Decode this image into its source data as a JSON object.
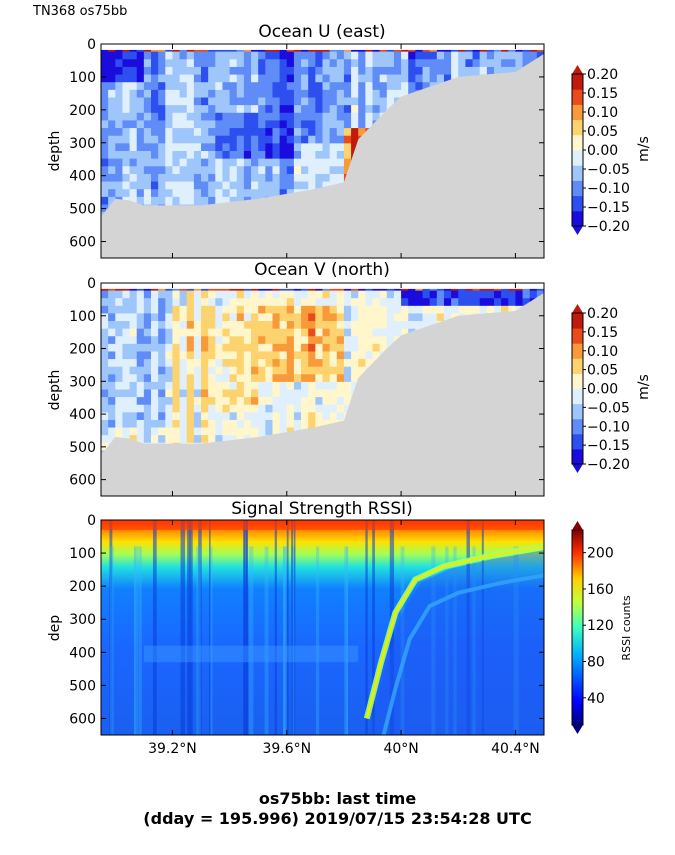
{
  "figure": {
    "suptitle": "TN368 os75bb",
    "footer_line1": "os75bb: last time",
    "footer_line2": "(dday = 195.996) 2019/07/15 23:54:28 UTC"
  },
  "colors": {
    "land_mask": "#d4d4d4",
    "background": "#ffffff"
  },
  "chart_data": [
    {
      "type": "heatmap",
      "title": "Ocean U (east)",
      "ylabel": "depth",
      "xlabel": "",
      "xlim": [
        38.95,
        40.5
      ],
      "ylim": [
        650,
        0
      ],
      "y_ticks": [
        0,
        100,
        200,
        300,
        400,
        500,
        600
      ],
      "x_ticks": [
        39.2,
        39.6,
        40.0,
        40.4
      ],
      "x_tick_labels": [],
      "colorbar": {
        "label": "m/s",
        "ticks": [
          "0.20",
          "0.15",
          "0.10",
          "0.05",
          "0.00",
          "−0.05",
          "−0.10",
          "−0.15",
          "−0.20"
        ],
        "range": [
          -0.2,
          0.2
        ],
        "levels": [
          "#1a0cdc",
          "#2d4ff0",
          "#5f8cf7",
          "#9ec6fb",
          "#dff0fc",
          "#fff6cc",
          "#fcd36f",
          "#f89a3a",
          "#ea4a1c",
          "#c01a0c"
        ]
      },
      "profile_depth_limit": [
        {
          "lat": 38.95,
          "depth": 525
        },
        {
          "lat": 39.0,
          "depth": 470
        },
        {
          "lat": 39.05,
          "depth": 475
        },
        {
          "lat": 39.1,
          "depth": 490
        },
        {
          "lat": 39.3,
          "depth": 490
        },
        {
          "lat": 39.5,
          "depth": 470
        },
        {
          "lat": 39.7,
          "depth": 440
        },
        {
          "lat": 39.8,
          "depth": 420
        },
        {
          "lat": 39.85,
          "depth": 290
        },
        {
          "lat": 39.95,
          "depth": 200
        },
        {
          "lat": 40.0,
          "depth": 160
        },
        {
          "lat": 40.2,
          "depth": 100
        },
        {
          "lat": 40.4,
          "depth": 85
        },
        {
          "lat": 40.5,
          "depth": 30
        }
      ],
      "velocity_regimes": [
        {
          "lat_from": 38.95,
          "lat_to": 39.1,
          "depth_from": 30,
          "depth_to": 110,
          "value": -0.17
        },
        {
          "lat_from": 39.1,
          "lat_to": 39.5,
          "depth_from": 30,
          "depth_to": 200,
          "value": -0.08
        },
        {
          "lat_from": 39.35,
          "lat_to": 39.65,
          "depth_from": 200,
          "depth_to": 350,
          "value": -0.14
        },
        {
          "lat_from": 39.5,
          "lat_to": 39.8,
          "depth_from": 30,
          "depth_to": 300,
          "value": -0.12
        },
        {
          "lat_from": 39.8,
          "lat_to": 39.95,
          "depth_from": 250,
          "depth_to": 520,
          "value": 0.13
        },
        {
          "lat_from": 39.95,
          "lat_to": 40.5,
          "depth_from": 30,
          "depth_to": 120,
          "value": -0.09
        }
      ]
    },
    {
      "type": "heatmap",
      "title": "Ocean V (north)",
      "ylabel": "depth",
      "xlabel": "",
      "xlim": [
        38.95,
        40.5
      ],
      "ylim": [
        650,
        0
      ],
      "y_ticks": [
        0,
        100,
        200,
        300,
        400,
        500,
        600
      ],
      "x_ticks": [
        39.2,
        39.6,
        40.0,
        40.4
      ],
      "x_tick_labels": [],
      "colorbar": {
        "label": "m/s",
        "ticks": [
          "0.20",
          "0.15",
          "0.10",
          "0.05",
          "0.00",
          "−0.05",
          "−0.10",
          "−0.15",
          "−0.20"
        ],
        "range": [
          -0.2,
          0.2
        ],
        "levels": [
          "#1a0cdc",
          "#2d4ff0",
          "#5f8cf7",
          "#9ec6fb",
          "#dff0fc",
          "#fff6cc",
          "#fcd36f",
          "#f89a3a",
          "#ea4a1c",
          "#c01a0c"
        ]
      },
      "velocity_regimes": [
        {
          "lat_from": 38.95,
          "lat_to": 39.2,
          "depth_from": 30,
          "depth_to": 450,
          "value": -0.05
        },
        {
          "lat_from": 39.2,
          "lat_to": 39.5,
          "depth_from": 60,
          "depth_to": 400,
          "value": 0.03
        },
        {
          "lat_from": 39.5,
          "lat_to": 39.8,
          "depth_from": 60,
          "depth_to": 300,
          "value": 0.07
        },
        {
          "lat_from": 39.8,
          "lat_to": 40.0,
          "depth_from": 60,
          "depth_to": 450,
          "value": 0.02
        },
        {
          "lat_from": 40.0,
          "lat_to": 40.5,
          "depth_from": 20,
          "depth_to": 60,
          "value": -0.15
        }
      ]
    },
    {
      "type": "heatmap",
      "title": "Signal Strength RSSI)",
      "ylabel": "dep",
      "xlabel": "",
      "xlim": [
        38.95,
        40.5
      ],
      "ylim": [
        650,
        0
      ],
      "y_ticks": [
        0,
        100,
        200,
        300,
        400,
        500,
        600
      ],
      "x_ticks": [
        39.2,
        39.6,
        40.0,
        40.4
      ],
      "x_tick_labels": [
        "39.2°N",
        "39.6°N",
        "40°N",
        "40.4°N"
      ],
      "colorbar": {
        "label": "RSSI counts",
        "ticks": [
          "200",
          "160",
          "120",
          "80",
          "40"
        ],
        "tick_values": [
          200,
          160,
          120,
          80,
          40
        ],
        "range": [
          10,
          225
        ]
      },
      "rssi_profile": [
        {
          "depth": 20,
          "value": 210
        },
        {
          "depth": 60,
          "value": 170
        },
        {
          "depth": 110,
          "value": 140
        },
        {
          "depth": 160,
          "value": 110
        },
        {
          "depth": 220,
          "value": 75
        },
        {
          "depth": 300,
          "value": 65
        },
        {
          "depth": 450,
          "value": 60
        },
        {
          "depth": 650,
          "value": 55
        }
      ],
      "bottom_echo_track": [
        {
          "lat": 39.88,
          "depth": 600
        },
        {
          "lat": 39.93,
          "depth": 430
        },
        {
          "lat": 39.98,
          "depth": 280
        },
        {
          "lat": 40.05,
          "depth": 180
        },
        {
          "lat": 40.15,
          "depth": 140
        },
        {
          "lat": 40.3,
          "depth": 110
        },
        {
          "lat": 40.5,
          "depth": 80
        }
      ]
    }
  ]
}
